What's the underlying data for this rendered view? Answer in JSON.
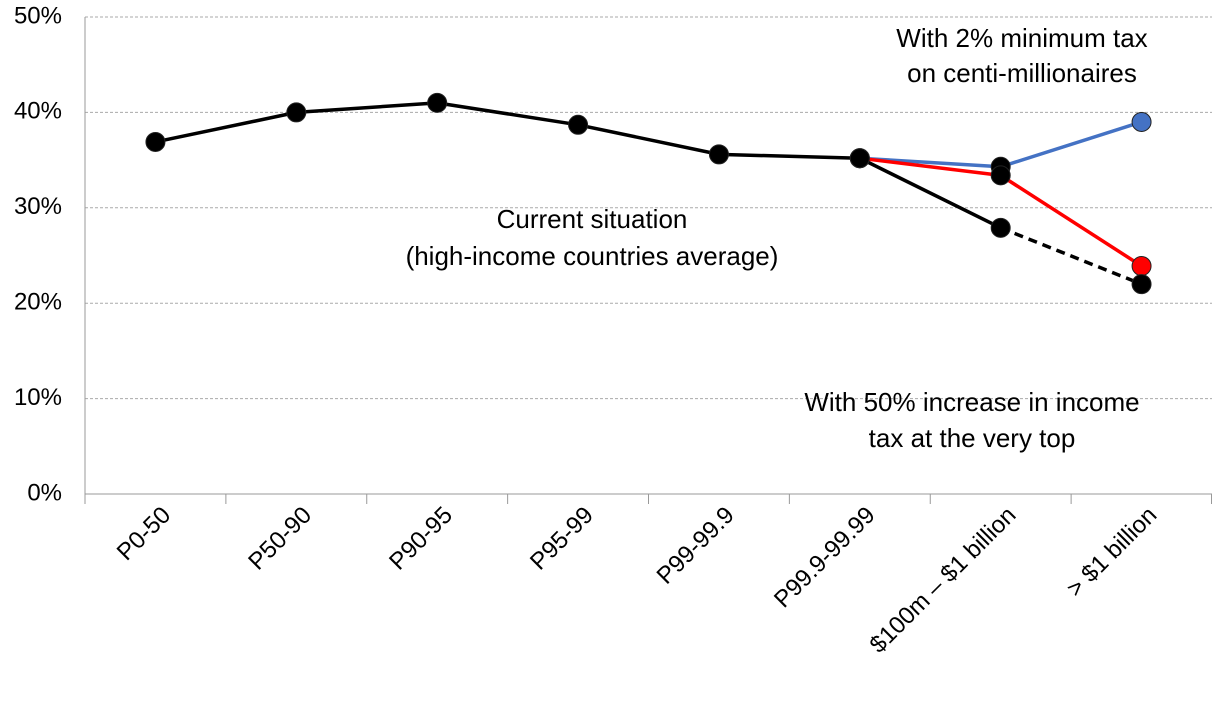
{
  "chart_data": {
    "type": "line",
    "categories": [
      "P0-50",
      "P50-90",
      "P90-95",
      "P95-99",
      "P99-99.9",
      "P99.9-99.99",
      "$100m – $1 billion",
      "> $1 billion"
    ],
    "ylim": [
      0,
      50
    ],
    "yticks": [
      {
        "value": 0,
        "label": "0%"
      },
      {
        "value": 10,
        "label": "10%"
      },
      {
        "value": 20,
        "label": "20%"
      },
      {
        "value": 30,
        "label": "30%"
      },
      {
        "value": 40,
        "label": "40%"
      },
      {
        "value": 50,
        "label": "50%"
      }
    ],
    "grid": true,
    "series": [
      {
        "color": "#4472c4",
        "end_marker_color": "#4472c4",
        "annotation": [
          "With 2% minimum tax",
          "on centi-millionaires"
        ],
        "values": [
          null,
          null,
          null,
          null,
          null,
          35.2,
          34.3,
          39.0
        ]
      },
      {
        "color": "#ff0000",
        "end_marker_color": "#ff0000",
        "annotation": [
          "With 50% increase in income",
          "tax at the very top"
        ],
        "values": [
          null,
          null,
          null,
          null,
          null,
          35.2,
          33.4,
          23.9
        ]
      },
      {
        "color": "#000000",
        "end_marker_color": "#000000",
        "dashed_from": 6,
        "annotation": [
          "Current situation",
          "(high-income countries average)"
        ],
        "values": [
          36.9,
          40.0,
          41.0,
          38.7,
          35.6,
          35.2,
          27.9,
          22.0
        ]
      }
    ]
  }
}
